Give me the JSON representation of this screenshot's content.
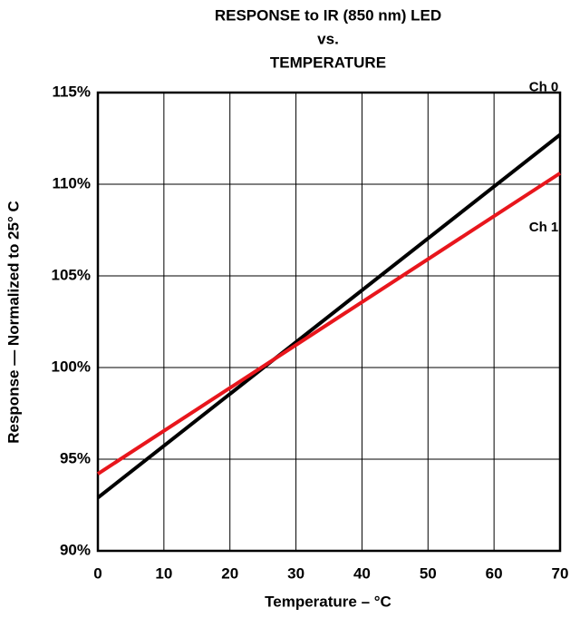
{
  "chart_data": {
    "type": "line",
    "title": [
      "RESPONSE to IR (850 nm) LED",
      "vs.",
      "TEMPERATURE"
    ],
    "x_label": "Temperature – °C",
    "y_label": "Response — Normalized to 25° C",
    "x": [
      0,
      70
    ],
    "series": [
      {
        "name": "Ch 0",
        "color": "#000000",
        "values": [
          92.9,
          112.7
        ]
      },
      {
        "name": "Ch 1",
        "color": "#e8161c",
        "values": [
          94.2,
          110.6
        ]
      }
    ],
    "xlim": [
      0,
      70
    ],
    "xticks": [
      0,
      10,
      20,
      30,
      40,
      50,
      60,
      70
    ],
    "ylim": [
      90,
      115
    ],
    "yticks": [
      {
        "value": 90,
        "label": "90%"
      },
      {
        "value": 95,
        "label": "95%"
      },
      {
        "value": 100,
        "label": "100%"
      },
      {
        "value": 105,
        "label": "105%"
      },
      {
        "value": 110,
        "label": "110%"
      },
      {
        "value": 115,
        "label": "115%"
      }
    ],
    "grid": true
  }
}
